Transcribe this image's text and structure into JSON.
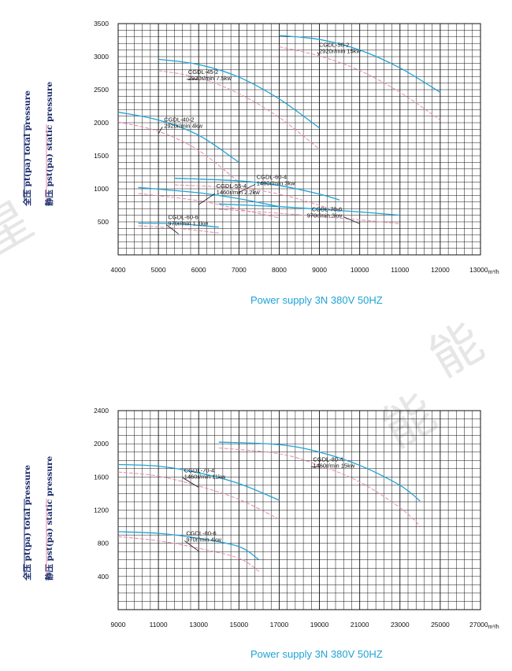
{
  "chart_data": [
    {
      "type": "line",
      "xlabel": "m³/h",
      "y_axis_labels": [
        "全压 pt(pa)  total pressure",
        "静压 pst(pa) static pressure"
      ],
      "xlim": [
        4000,
        13000
      ],
      "ylim": [
        0,
        3500
      ],
      "x_ticks": [
        4000,
        5000,
        6000,
        7000,
        8000,
        9000,
        10000,
        11000,
        12000,
        13000
      ],
      "y_ticks": [
        500,
        1000,
        1500,
        2000,
        2500,
        3000,
        3500
      ],
      "x_tick_labels": [
        "4000",
        "5000",
        "6000",
        "7000",
        "8000",
        "9000",
        "10000",
        "11000",
        "12000",
        "13000m³/h"
      ],
      "y_tick_labels": [
        "500",
        "1000",
        "1500",
        "2000",
        "2500",
        "3000",
        "3500"
      ],
      "series": [
        {
          "model": "CGDL-50-2",
          "speed": "2920r/min 15kw",
          "color": "#1fa3d6",
          "total": [
            [
              8000,
              3320
            ],
            [
              9000,
              3260
            ],
            [
              10000,
              3100
            ],
            [
              11000,
              2830
            ],
            [
              12000,
              2460
            ]
          ],
          "static": [
            [
              8000,
              3150
            ],
            [
              9000,
              3010
            ],
            [
              10000,
              2790
            ],
            [
              11000,
              2460
            ],
            [
              12000,
              2040
            ]
          ]
        },
        {
          "model": "CGDL-45-2",
          "speed": "2920r/min 7.5kw",
          "color": "#1fa3d6",
          "total": [
            [
              5000,
              2960
            ],
            [
              6000,
              2880
            ],
            [
              7000,
              2690
            ],
            [
              8000,
              2360
            ],
            [
              9000,
              1920
            ]
          ],
          "static": [
            [
              5000,
              2790
            ],
            [
              6000,
              2680
            ],
            [
              7000,
              2440
            ],
            [
              8000,
              2080
            ],
            [
              9000,
              1600
            ]
          ]
        },
        {
          "model": "CGDL-40-2",
          "speed": "2920r/min 4kw",
          "color": "#1fa3d6",
          "total": [
            [
              4000,
              2160
            ],
            [
              5000,
              2040
            ],
            [
              6000,
              1810
            ],
            [
              7000,
              1400
            ]
          ],
          "static": [
            [
              4000,
              2010
            ],
            [
              5000,
              1870
            ],
            [
              6000,
              1580
            ],
            [
              7000,
              1100
            ]
          ]
        },
        {
          "model": "CGDL-60-4",
          "speed": "1460r/min 3kw",
          "color": "#1fa3d6",
          "total": [
            [
              5400,
              1160
            ],
            [
              7000,
              1120
            ],
            [
              8000,
              1050
            ],
            [
              9000,
              920
            ],
            [
              9500,
              830
            ]
          ],
          "static": [
            [
              5400,
              1060
            ],
            [
              7000,
              1010
            ],
            [
              8000,
              920
            ],
            [
              9000,
              750
            ],
            [
              9500,
              650
            ]
          ]
        },
        {
          "model": "CGDL-55-4",
          "speed": "1460r/min 2.2kw",
          "color": "#1fa3d6",
          "total": [
            [
              4500,
              1020
            ],
            [
              6000,
              940
            ],
            [
              7000,
              850
            ],
            [
              8000,
              730
            ]
          ],
          "static": [
            [
              4500,
              930
            ],
            [
              6000,
              820
            ],
            [
              7000,
              690
            ],
            [
              8000,
              560
            ]
          ]
        },
        {
          "model": "CGDL-70-6",
          "speed": "970r/min 3kw",
          "color": "#1fa3d6",
          "total": [
            [
              6500,
              770
            ],
            [
              8000,
              730
            ],
            [
              9000,
              690
            ],
            [
              10000,
              650
            ],
            [
              11000,
              600
            ]
          ],
          "static": [
            [
              6500,
              690
            ],
            [
              8000,
              630
            ],
            [
              9000,
              580
            ],
            [
              10000,
              530
            ],
            [
              11000,
              470
            ]
          ]
        },
        {
          "model": "CGDL-60-6",
          "speed": "970r/min 1.1kw",
          "color": "#1fa3d6",
          "total": [
            [
              4500,
              480
            ],
            [
              5500,
              470
            ],
            [
              6500,
              420
            ]
          ],
          "static": [
            [
              4500,
              440
            ],
            [
              5500,
              400
            ],
            [
              6500,
              330
            ]
          ]
        }
      ],
      "footer": "Power supply   3N 380V  50HZ"
    },
    {
      "type": "line",
      "xlabel": "m³/h",
      "y_axis_labels": [
        "全压 pt(pa)  total pressure",
        "静压 pst(pa) static pressure"
      ],
      "xlim": [
        9000,
        27000
      ],
      "ylim": [
        0,
        2400
      ],
      "x_ticks": [
        9000,
        11000,
        13000,
        15000,
        17000,
        19000,
        21000,
        23000,
        25000,
        27000
      ],
      "y_ticks": [
        400,
        800,
        1200,
        1600,
        2000,
        2400
      ],
      "x_tick_labels": [
        "9000",
        "11000",
        "13000",
        "15000",
        "17000",
        "19000",
        "21000",
        "23000",
        "25000",
        "27000m³/h"
      ],
      "y_tick_labels": [
        "400",
        "800",
        "1200",
        "1600",
        "2000",
        "2400"
      ],
      "series": [
        {
          "model": "CGDL-80-4",
          "speed": "1460r/min 15kw",
          "color": "#1fa3d6",
          "total": [
            [
              14000,
              2020
            ],
            [
              17000,
              1990
            ],
            [
              19000,
              1900
            ],
            [
              21000,
              1740
            ],
            [
              23000,
              1500
            ],
            [
              24000,
              1310
            ]
          ],
          "static": [
            [
              14000,
              1950
            ],
            [
              17000,
              1880
            ],
            [
              19000,
              1740
            ],
            [
              21000,
              1540
            ],
            [
              23000,
              1230
            ],
            [
              24000,
              1010
            ]
          ]
        },
        {
          "model": "CGDL-70-4",
          "speed": "1460r/min 11kw",
          "color": "#1fa3d6",
          "total": [
            [
              9000,
              1750
            ],
            [
              11000,
              1730
            ],
            [
              13000,
              1650
            ],
            [
              15000,
              1520
            ],
            [
              17000,
              1320
            ]
          ],
          "static": [
            [
              9000,
              1660
            ],
            [
              11000,
              1610
            ],
            [
              13000,
              1490
            ],
            [
              15000,
              1330
            ],
            [
              17000,
              1090
            ]
          ]
        },
        {
          "model": "CGDL-80-6",
          "speed": "970r/min 4kw",
          "color": "#1fa3d6",
          "total": [
            [
              9000,
              940
            ],
            [
              11000,
              920
            ],
            [
              13000,
              860
            ],
            [
              15000,
              760
            ],
            [
              16000,
              600
            ]
          ],
          "static": [
            [
              9000,
              880
            ],
            [
              11000,
              830
            ],
            [
              13000,
              740
            ],
            [
              15000,
              620
            ],
            [
              16000,
              460
            ]
          ]
        }
      ],
      "footer": "Power supply   3N 380V  50HZ"
    }
  ],
  "colors": {
    "total": "#1fa3d6",
    "static": "#e58aa8",
    "grid": "#111111",
    "footer": "#1fa3d6"
  }
}
